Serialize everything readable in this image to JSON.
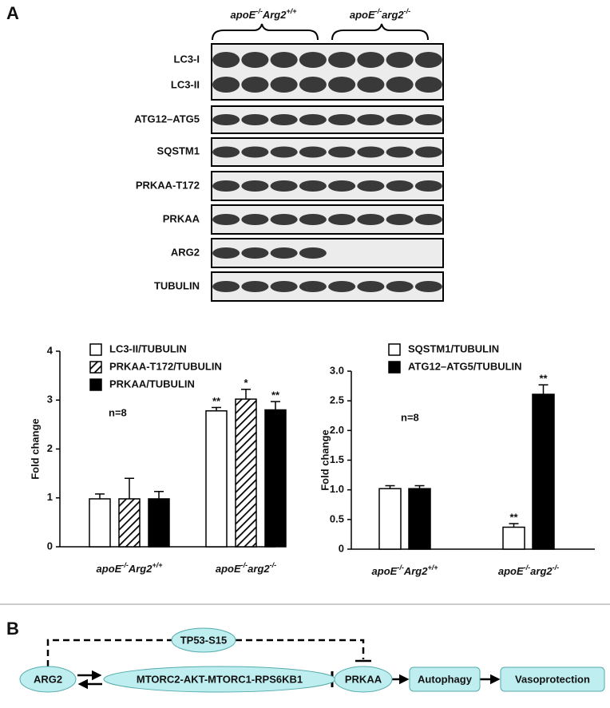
{
  "panel_a": {
    "label": "A",
    "groups": [
      "apoE-/-Arg2+/+",
      "apoE-/-arg2-/-"
    ],
    "blot_rows": [
      "LC3-I",
      "LC3-II",
      "ATG12–ATG5",
      "SQSTM1",
      "PRKAA-T172",
      "PRKAA",
      "ARG2",
      "TUBULIN"
    ]
  },
  "chart_data": [
    {
      "type": "bar",
      "y_label": "Fold change",
      "annotation": "n=8",
      "categories": [
        "apoE-/-Arg2+/+",
        "apoE-/-arg2-/-"
      ],
      "series": [
        {
          "name": "LC3-II/TUBULIN",
          "color": "#ffffff",
          "values": [
            0.98,
            2.78
          ],
          "errors": [
            0.1,
            0.07
          ],
          "markers": [
            null,
            "**"
          ]
        },
        {
          "name": "PRKAA-T172/TUBULIN",
          "color": "#ffffff",
          "hatch": true,
          "values": [
            0.98,
            3.02
          ],
          "errors": [
            0.42,
            0.2
          ],
          "markers": [
            null,
            "*"
          ]
        },
        {
          "name": "PRKAA/TUBULIN",
          "color": "#000000",
          "values": [
            0.98,
            2.8
          ],
          "errors": [
            0.15,
            0.17
          ],
          "markers": [
            null,
            "**"
          ]
        }
      ],
      "ylim": [
        0,
        4
      ],
      "yticks": [
        0,
        1,
        2,
        3,
        4
      ]
    },
    {
      "type": "bar",
      "y_label": "Fold change",
      "annotation": "n=8",
      "categories": [
        "apoE-/-Arg2+/+",
        "apoE-/-arg2-/-"
      ],
      "series": [
        {
          "name": "SQSTM1/TUBULIN",
          "color": "#ffffff",
          "values": [
            1.02,
            0.37
          ],
          "errors": [
            0.05,
            0.06
          ],
          "markers": [
            null,
            "**"
          ]
        },
        {
          "name": "ATG12–ATG5/TUBULIN",
          "color": "#000000",
          "values": [
            1.02,
            2.61
          ],
          "errors": [
            0.05,
            0.16
          ],
          "markers": [
            null,
            "**"
          ]
        }
      ],
      "ylim": [
        0,
        3
      ],
      "yticks": [
        0,
        0.5,
        {
          "value": 1,
          "label": "1.0"
        },
        1.5,
        {
          "value": 2,
          "label": "2.0"
        },
        2.5,
        {
          "value": 3,
          "label": "3.0"
        }
      ]
    }
  ],
  "panel_b": {
    "label": "B",
    "nodes": [
      "ARG2",
      "MTORC2-AKT-MTORC1-RPS6KB1",
      "PRKAA",
      "TP53-S15",
      "Autophagy",
      "Vasoprotection"
    ]
  }
}
